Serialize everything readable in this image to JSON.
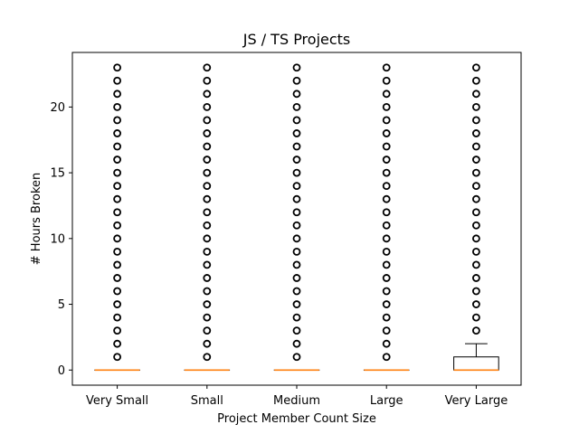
{
  "chart_data": {
    "type": "box",
    "title": "JS / TS Projects",
    "xlabel": "Project Member Count Size",
    "ylabel": "# Hours Broken",
    "categories": [
      "Very Small",
      "Small",
      "Medium",
      "Large",
      "Very Large"
    ],
    "ylim": [
      -1.15,
      24.15
    ],
    "yticks": [
      0,
      5,
      10,
      15,
      20
    ],
    "boxes": [
      {
        "category": "Very Small",
        "q1": 0,
        "median": 0,
        "q3": 0,
        "whisker_low": 0,
        "whisker_high": 0,
        "outliers": [
          1,
          2,
          3,
          4,
          5,
          6,
          7,
          8,
          9,
          10,
          11,
          12,
          13,
          14,
          15,
          16,
          17,
          18,
          19,
          20,
          21,
          22,
          23
        ]
      },
      {
        "category": "Small",
        "q1": 0,
        "median": 0,
        "q3": 0,
        "whisker_low": 0,
        "whisker_high": 0,
        "outliers": [
          1,
          2,
          3,
          4,
          5,
          6,
          7,
          8,
          9,
          10,
          11,
          12,
          13,
          14,
          15,
          16,
          17,
          18,
          19,
          20,
          21,
          22,
          23
        ]
      },
      {
        "category": "Medium",
        "q1": 0,
        "median": 0,
        "q3": 0,
        "whisker_low": 0,
        "whisker_high": 0,
        "outliers": [
          1,
          2,
          3,
          4,
          5,
          6,
          7,
          8,
          9,
          10,
          11,
          12,
          13,
          14,
          15,
          16,
          17,
          18,
          19,
          20,
          21,
          22,
          23
        ]
      },
      {
        "category": "Large",
        "q1": 0,
        "median": 0,
        "q3": 0,
        "whisker_low": 0,
        "whisker_high": 0,
        "outliers": [
          1,
          2,
          3,
          4,
          5,
          6,
          7,
          8,
          9,
          10,
          11,
          12,
          13,
          14,
          15,
          16,
          17,
          18,
          19,
          20,
          21,
          22,
          23
        ]
      },
      {
        "category": "Very Large",
        "q1": 0,
        "median": 0,
        "q3": 1,
        "whisker_low": 0,
        "whisker_high": 2,
        "outliers": [
          3,
          4,
          5,
          6,
          7,
          8,
          9,
          10,
          11,
          12,
          13,
          14,
          15,
          16,
          17,
          18,
          19,
          20,
          21,
          22,
          23
        ]
      }
    ],
    "grid": false,
    "legend": "none"
  },
  "colors": {
    "box": "#000000",
    "median": "#ff7f0e",
    "outlier": "#000000",
    "background": "#ffffff"
  }
}
